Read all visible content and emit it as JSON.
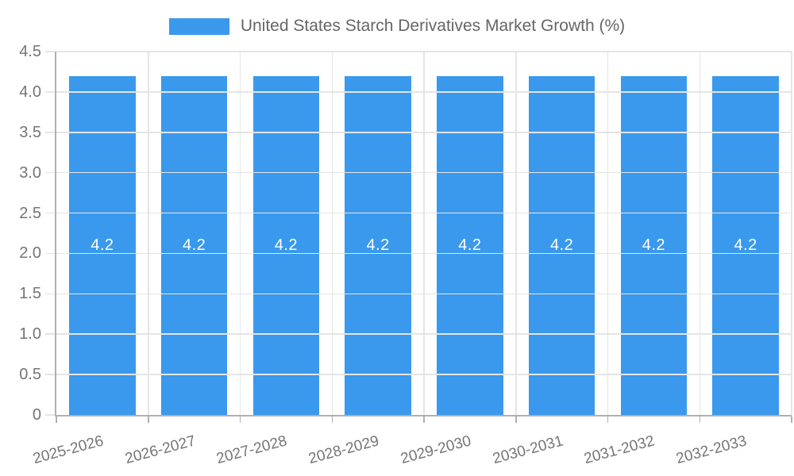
{
  "chart_data": {
    "type": "bar",
    "title": "United States Starch Derivatives Market Growth (%)",
    "legend_position": "top",
    "legend_entries": [
      "United States Starch Derivatives Market Growth (%)"
    ],
    "categories": [
      "2025-2026",
      "2026-2027",
      "2027-2028",
      "2028-2029",
      "2029-2030",
      "2030-2031",
      "2031-2032",
      "2032-2033"
    ],
    "values": [
      4.2,
      4.2,
      4.2,
      4.2,
      4.2,
      4.2,
      4.2,
      4.2
    ],
    "bar_value_labels": [
      "4.2",
      "4.2",
      "4.2",
      "4.2",
      "4.2",
      "4.2",
      "4.2",
      "4.2"
    ],
    "xlabel": "",
    "ylabel": "",
    "ylim": [
      0,
      4.5
    ],
    "y_tick_labels": [
      "4.5",
      "4.0",
      "3.5",
      "3.0",
      "2.5",
      "2.0",
      "1.5",
      "1.0",
      "0.5",
      "0"
    ],
    "y_tick_values": [
      4.5,
      4.0,
      3.5,
      3.0,
      2.5,
      2.0,
      1.5,
      1.0,
      0.5,
      0
    ],
    "grid": true
  },
  "colors": {
    "bar": "#3A99EC",
    "bar_value_label": "#FFFFFF",
    "grid_line": "#E5E5E5",
    "axis_line": "#B0B0B0",
    "tick_label": "#757575",
    "legend_text": "#666666"
  }
}
